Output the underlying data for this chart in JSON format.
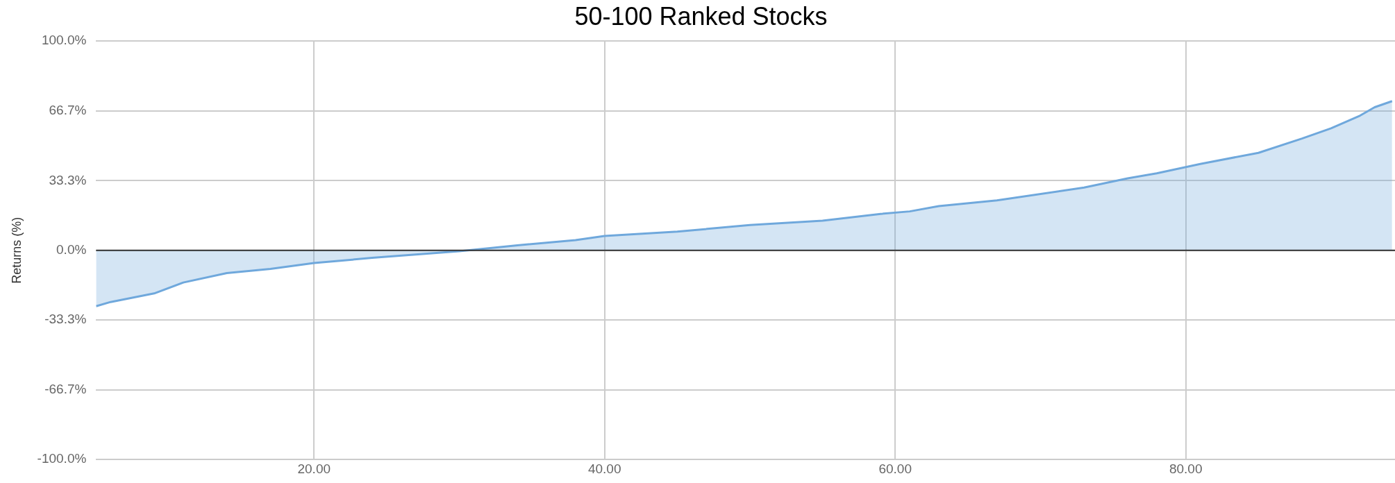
{
  "chart_data": {
    "type": "area",
    "title": "50-100 Ranked Stocks",
    "ylabel": "Returns (%)",
    "x": [
      5,
      6,
      9,
      11,
      14,
      17,
      20,
      24,
      27,
      30,
      34,
      38,
      40,
      45,
      50,
      55,
      59,
      61,
      63,
      67,
      73,
      76,
      78,
      81,
      85,
      88,
      90,
      92,
      93,
      94.2
    ],
    "series": [
      {
        "color": "#6fa8dc",
        "values": [
          -26.7,
          -24.7,
          -20.6,
          -15.4,
          -10.9,
          -8.9,
          -6.1,
          -3.6,
          -2.0,
          -0.4,
          2.4,
          4.9,
          6.9,
          8.9,
          12.1,
          14.2,
          17.4,
          18.6,
          21.1,
          23.9,
          30.0,
          34.4,
          36.8,
          41.3,
          46.6,
          53.4,
          58.3,
          64.4,
          68.4,
          71.3
        ]
      }
    ],
    "xlim": [
      5,
      94.4
    ],
    "xticks": [
      {
        "value": 20,
        "label": "20.00"
      },
      {
        "value": 40,
        "label": "40.00"
      },
      {
        "value": 60,
        "label": "60.00"
      },
      {
        "value": 80,
        "label": "80.00"
      }
    ],
    "ylim": [
      -100,
      100
    ],
    "yticks": [
      {
        "value": -100,
        "label": "-100.0%"
      },
      {
        "value": -66.7,
        "label": "-66.7%"
      },
      {
        "value": -33.3,
        "label": "-33.3%"
      },
      {
        "value": 0,
        "label": "0.0%"
      },
      {
        "value": 33.3,
        "label": "33.3%"
      },
      {
        "value": 66.7,
        "label": "66.7%"
      },
      {
        "value": 100,
        "label": "100.0%"
      }
    ],
    "ref_lines": [
      {
        "axis": "y",
        "value": 0,
        "color": "#333333"
      }
    ],
    "grid": true,
    "legend": false
  }
}
